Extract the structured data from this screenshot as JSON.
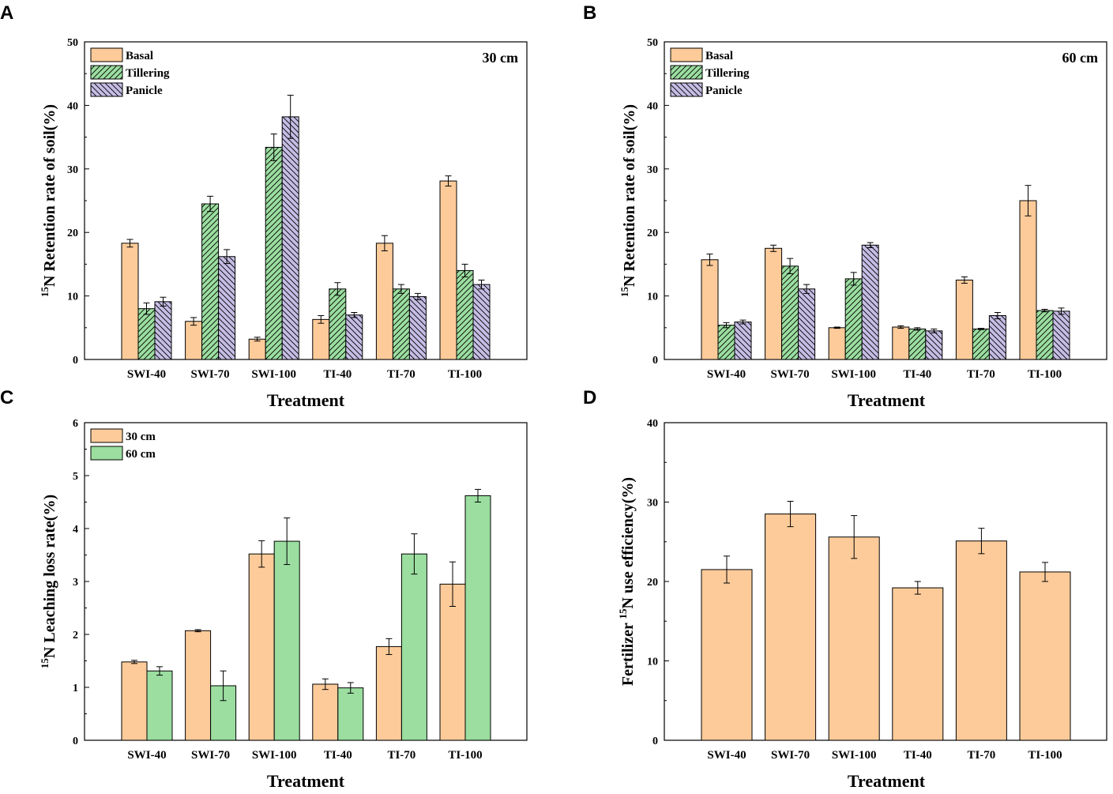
{
  "colors": {
    "basal": "#fdcb9a",
    "tillering": "#9bdea0",
    "panicle": "#c6bde5",
    "d30": "#fdcb9a",
    "d60": "#9bdea0",
    "stroke": "#000000"
  },
  "chart_data": [
    {
      "id": "A",
      "panel_label": "A",
      "type": "bar",
      "title": "",
      "annotation": "30 cm",
      "xlabel": "Treatment",
      "ylabel_sup": "15",
      "ylabel_main": "N Retention rate of soil(%)",
      "ylabel_pre": "",
      "ylim": [
        0,
        50
      ],
      "yticks": [
        "0",
        "10",
        "20",
        "30",
        "40",
        "50"
      ],
      "categories": [
        "SWI-40",
        "SWI-70",
        "SWI-100",
        "TI-40",
        "TI-70",
        "TI-100"
      ],
      "legend": "top-left",
      "series": [
        {
          "name": "Basal",
          "color_key": "basal",
          "pattern": "none",
          "values": [
            18.3,
            6.0,
            3.2,
            6.3,
            18.3,
            28.1
          ],
          "errors": [
            0.6,
            0.6,
            0.3,
            0.6,
            1.2,
            0.8
          ]
        },
        {
          "name": "Tillering",
          "color_key": "tillering",
          "pattern": "hatch-fwd",
          "values": [
            8.0,
            24.5,
            33.4,
            11.1,
            11.1,
            14.0
          ],
          "errors": [
            0.9,
            1.2,
            2.1,
            1.0,
            0.7,
            1.0
          ]
        },
        {
          "name": "Panicle",
          "color_key": "panicle",
          "pattern": "hatch-back",
          "values": [
            9.1,
            16.2,
            38.2,
            7.0,
            9.9,
            11.8
          ],
          "errors": [
            0.7,
            1.1,
            3.4,
            0.4,
            0.5,
            0.7
          ]
        }
      ]
    },
    {
      "id": "B",
      "panel_label": "B",
      "type": "bar",
      "title": "",
      "annotation": "60 cm",
      "xlabel": "Treatment",
      "ylabel_sup": "15",
      "ylabel_main": "N Retention rate of soil(%)",
      "ylabel_pre": "",
      "ylim": [
        0,
        50
      ],
      "yticks": [
        "0",
        "10",
        "20",
        "30",
        "40",
        "50"
      ],
      "categories": [
        "SWI-40",
        "SWI-70",
        "SWI-100",
        "TI-40",
        "TI-70",
        "TI-100"
      ],
      "legend": "top-left",
      "series": [
        {
          "name": "Basal",
          "color_key": "basal",
          "pattern": "none",
          "values": [
            15.7,
            17.5,
            5.0,
            5.1,
            12.5,
            25.0
          ],
          "errors": [
            0.9,
            0.5,
            0.1,
            0.2,
            0.5,
            2.4
          ]
        },
        {
          "name": "Tillering",
          "color_key": "tillering",
          "pattern": "hatch-fwd",
          "values": [
            5.4,
            14.7,
            12.7,
            4.8,
            4.8,
            7.7
          ],
          "errors": [
            0.4,
            1.2,
            1.0,
            0.2,
            0.1,
            0.2
          ]
        },
        {
          "name": "Panicle",
          "color_key": "panicle",
          "pattern": "hatch-back",
          "values": [
            5.9,
            11.1,
            18.0,
            4.5,
            6.9,
            7.6
          ],
          "errors": [
            0.3,
            0.7,
            0.4,
            0.3,
            0.5,
            0.5
          ]
        }
      ]
    },
    {
      "id": "C",
      "panel_label": "C",
      "type": "bar",
      "title": "",
      "annotation": "",
      "xlabel": "Treatment",
      "ylabel_sup": "15",
      "ylabel_main": "N Leaching loss rate(%)",
      "ylabel_pre": "",
      "ylim": [
        0,
        6
      ],
      "yticks": [
        "0",
        "1",
        "2",
        "3",
        "4",
        "5",
        "6"
      ],
      "categories": [
        "SWI-40",
        "SWI-70",
        "SWI-100",
        "TI-40",
        "TI-70",
        "TI-100"
      ],
      "legend": "top-left",
      "series": [
        {
          "name": "30 cm",
          "color_key": "d30",
          "pattern": "none",
          "values": [
            1.48,
            2.07,
            3.52,
            1.06,
            1.77,
            2.95
          ],
          "errors": [
            0.03,
            0.02,
            0.25,
            0.1,
            0.15,
            0.42
          ]
        },
        {
          "name": "60 cm",
          "color_key": "d60",
          "pattern": "none",
          "values": [
            1.31,
            1.03,
            3.76,
            0.99,
            3.52,
            4.62
          ],
          "errors": [
            0.08,
            0.28,
            0.44,
            0.1,
            0.38,
            0.12
          ]
        }
      ]
    },
    {
      "id": "D",
      "panel_label": "D",
      "type": "bar",
      "title": "",
      "annotation": "",
      "xlabel": "Treatment",
      "ylabel_pre": "Fertilizer ",
      "ylabel_sup": "15",
      "ylabel_main": "N use efficiency(%)",
      "ylim": [
        0,
        40
      ],
      "yticks": [
        "0",
        "10",
        "20",
        "30",
        "40"
      ],
      "categories": [
        "SWI-40",
        "SWI-70",
        "SWI-100",
        "TI-40",
        "TI-70",
        "TI-100"
      ],
      "legend": "none",
      "series": [
        {
          "name": "",
          "color_key": "basal",
          "pattern": "none",
          "values": [
            21.5,
            28.5,
            25.6,
            19.2,
            25.1,
            21.2
          ],
          "errors": [
            1.7,
            1.6,
            2.7,
            0.8,
            1.6,
            1.2
          ]
        }
      ]
    }
  ]
}
